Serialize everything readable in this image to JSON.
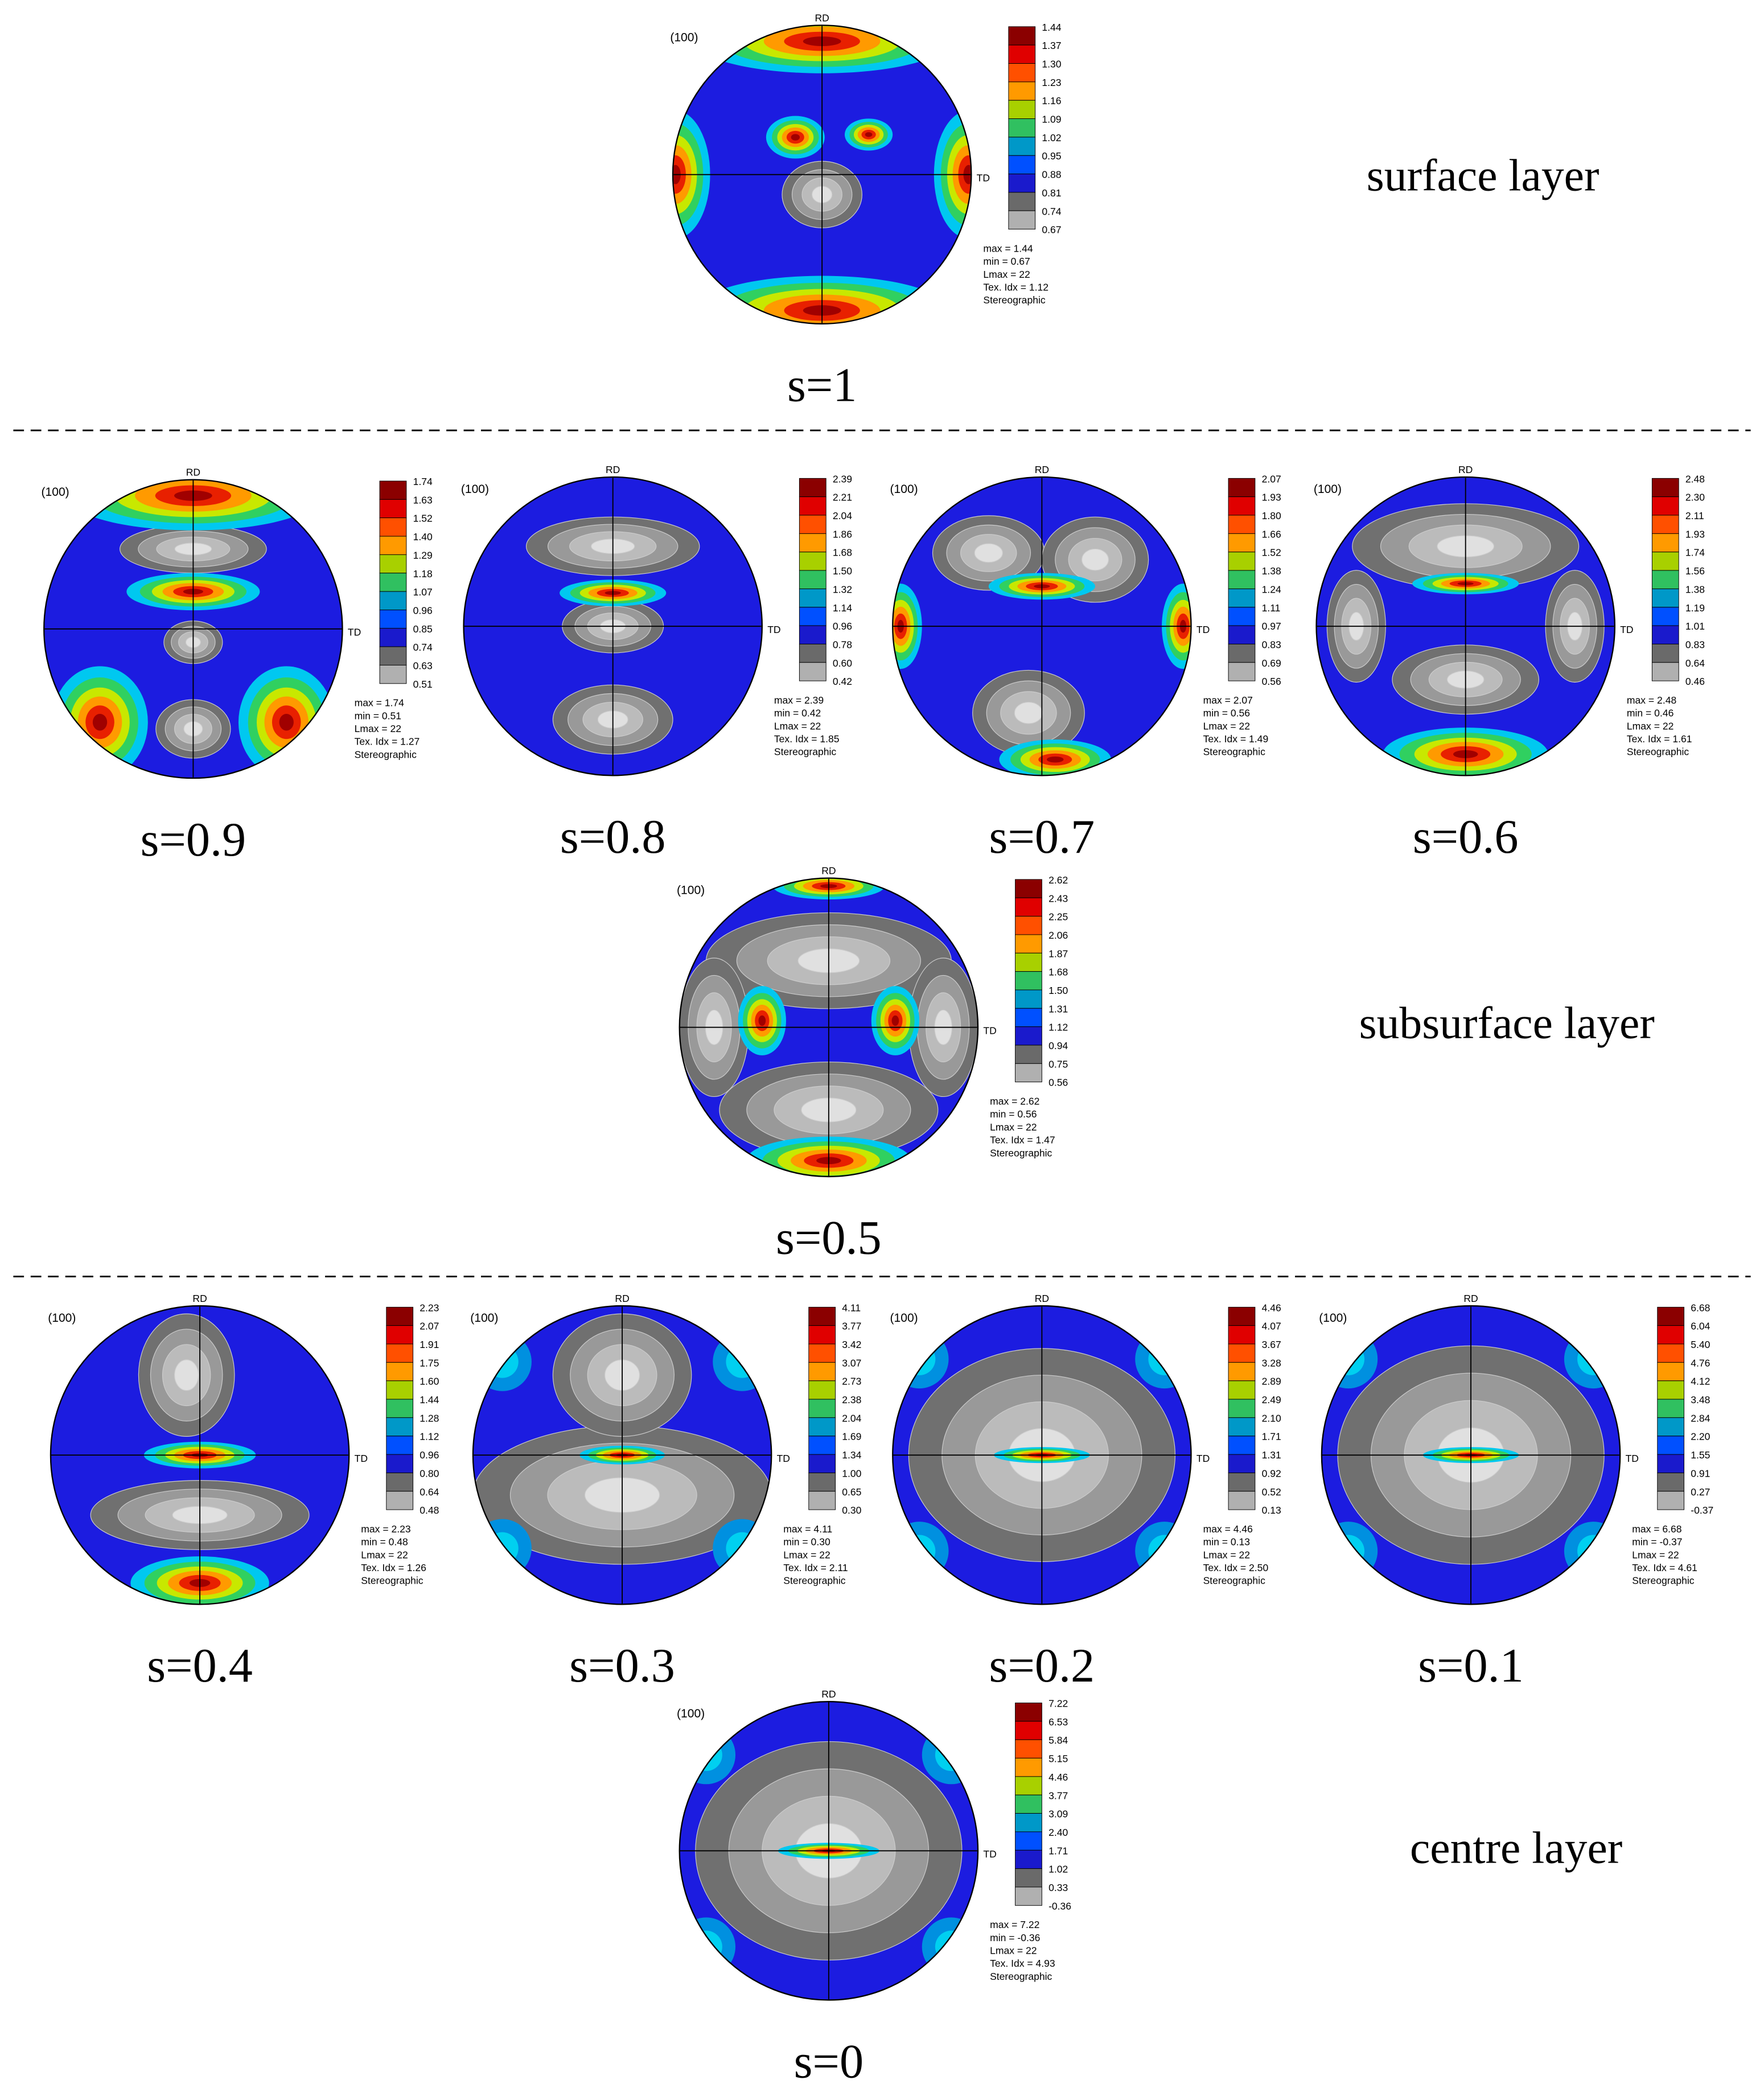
{
  "panels": [
    {
      "pole": "(100)",
      "rd": "RD",
      "td": "TD",
      "legend": [
        "1.44",
        "1.37",
        "1.30",
        "1.23",
        "1.16",
        "1.09",
        "1.02",
        "0.95",
        "0.88",
        "0.81",
        "0.74",
        "0.67"
      ],
      "stats": [
        "max = 1.44",
        "min = 0.67",
        "Lmax = 22",
        "Tex. Idx = 1.12",
        "Stereographic"
      ],
      "label": "s=1"
    },
    {
      "pole": "(100)",
      "rd": "RD",
      "td": "TD",
      "legend": [
        "1.74",
        "1.63",
        "1.52",
        "1.40",
        "1.29",
        "1.18",
        "1.07",
        "0.96",
        "0.85",
        "0.74",
        "0.63",
        "0.51"
      ],
      "stats": [
        "max = 1.74",
        "min = 0.51",
        "Lmax = 22",
        "Tex. Idx = 1.27",
        "Stereographic"
      ],
      "label": "s=0.9"
    },
    {
      "pole": "(100)",
      "rd": "RD",
      "td": "TD",
      "legend": [
        "2.39",
        "2.21",
        "2.04",
        "1.86",
        "1.68",
        "1.50",
        "1.32",
        "1.14",
        "0.96",
        "0.78",
        "0.60",
        "0.42"
      ],
      "stats": [
        "max = 2.39",
        "min = 0.42",
        "Lmax = 22",
        "Tex. Idx = 1.85",
        "Stereographic"
      ],
      "label": "s=0.8"
    },
    {
      "pole": "(100)",
      "rd": "RD",
      "td": "TD",
      "legend": [
        "2.07",
        "1.93",
        "1.80",
        "1.66",
        "1.52",
        "1.38",
        "1.24",
        "1.11",
        "0.97",
        "0.83",
        "0.69",
        "0.56"
      ],
      "stats": [
        "max = 2.07",
        "min = 0.56",
        "Lmax = 22",
        "Tex. Idx = 1.49",
        "Stereographic"
      ],
      "label": "s=0.7"
    },
    {
      "pole": "(100)",
      "rd": "RD",
      "td": "TD",
      "legend": [
        "2.48",
        "2.30",
        "2.11",
        "1.93",
        "1.74",
        "1.56",
        "1.38",
        "1.19",
        "1.01",
        "0.83",
        "0.64",
        "0.46"
      ],
      "stats": [
        "max = 2.48",
        "min = 0.46",
        "Lmax = 22",
        "Tex. Idx = 1.61",
        "Stereographic"
      ],
      "label": "s=0.6"
    },
    {
      "pole": "(100)",
      "rd": "RD",
      "td": "TD",
      "legend": [
        "2.62",
        "2.43",
        "2.25",
        "2.06",
        "1.87",
        "1.68",
        "1.50",
        "1.31",
        "1.12",
        "0.94",
        "0.75",
        "0.56"
      ],
      "stats": [
        "max = 2.62",
        "min = 0.56",
        "Lmax = 22",
        "Tex. Idx = 1.47",
        "Stereographic"
      ],
      "label": "s=0.5"
    },
    {
      "pole": "(100)",
      "rd": "RD",
      "td": "TD",
      "legend": [
        "2.23",
        "2.07",
        "1.91",
        "1.75",
        "1.60",
        "1.44",
        "1.28",
        "1.12",
        "0.96",
        "0.80",
        "0.64",
        "0.48"
      ],
      "stats": [
        "max = 2.23",
        "min = 0.48",
        "Lmax = 22",
        "Tex. Idx = 1.26",
        "Stereographic"
      ],
      "label": "s=0.4"
    },
    {
      "pole": "(100)",
      "rd": "RD",
      "td": "TD",
      "legend": [
        "4.11",
        "3.77",
        "3.42",
        "3.07",
        "2.73",
        "2.38",
        "2.04",
        "1.69",
        "1.34",
        "1.00",
        "0.65",
        "0.30"
      ],
      "stats": [
        "max = 4.11",
        "min = 0.30",
        "Lmax = 22",
        "Tex. Idx = 2.11",
        "Stereographic"
      ],
      "label": "s=0.3"
    },
    {
      "pole": "(100)",
      "rd": "RD",
      "td": "TD",
      "legend": [
        "4.46",
        "4.07",
        "3.67",
        "3.28",
        "2.89",
        "2.49",
        "2.10",
        "1.71",
        "1.31",
        "0.92",
        "0.52",
        "0.13"
      ],
      "stats": [
        "max = 4.46",
        "min = 0.13",
        "Lmax = 22",
        "Tex. Idx = 2.50",
        "Stereographic"
      ],
      "label": "s=0.2"
    },
    {
      "pole": "(100)",
      "rd": "RD",
      "td": "TD",
      "legend": [
        "6.68",
        "6.04",
        "5.40",
        "4.76",
        "4.12",
        "3.48",
        "2.84",
        "2.20",
        "1.55",
        "0.91",
        "0.27",
        "-0.37"
      ],
      "stats": [
        "max = 6.68",
        "min = -0.37",
        "Lmax = 22",
        "Tex. Idx = 4.61",
        "Stereographic"
      ],
      "label": "s=0.1"
    },
    {
      "pole": "(100)",
      "rd": "RD",
      "td": "TD",
      "legend": [
        "7.22",
        "6.53",
        "5.84",
        "5.15",
        "4.46",
        "3.77",
        "3.09",
        "2.40",
        "1.71",
        "1.02",
        "0.33",
        "-0.36"
      ],
      "stats": [
        "max = 7.22",
        "min = -0.36",
        "Lmax = 22",
        "Tex. Idx = 4.93",
        "Stereographic"
      ],
      "label": "s=0"
    }
  ],
  "layers": [
    "surface layer",
    "subsurface layer",
    "centre layer"
  ]
}
